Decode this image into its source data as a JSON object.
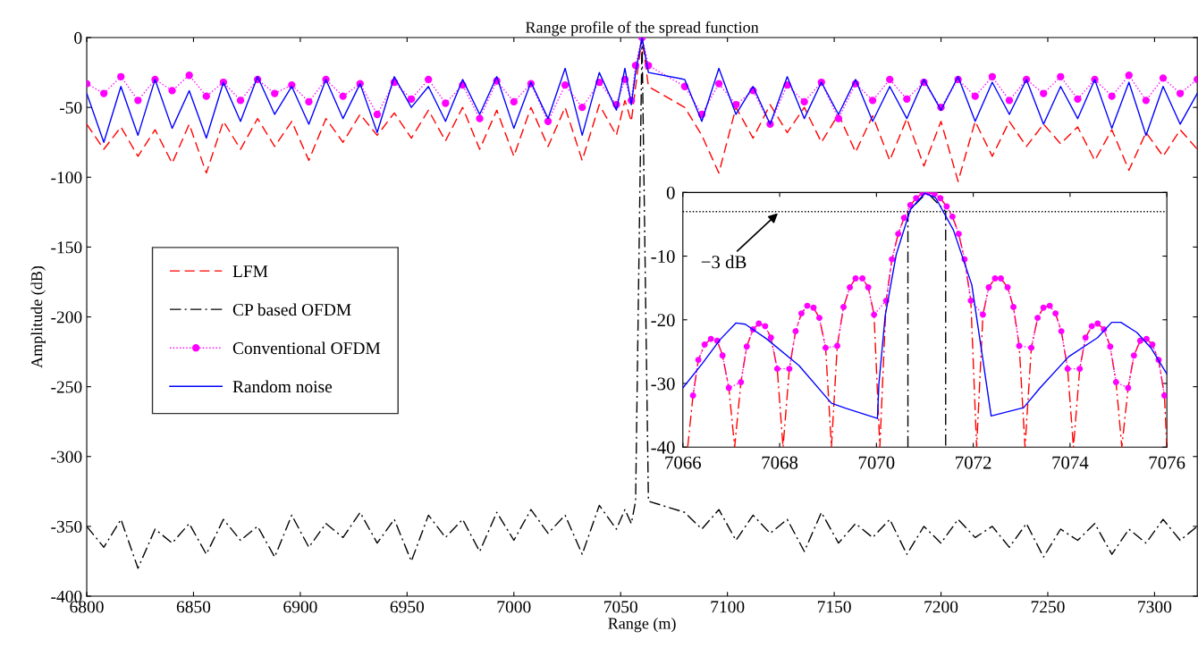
{
  "chart_data": [
    {
      "type": "line",
      "title": "Range profile of the spread function",
      "xlabel": "Range (m)",
      "ylabel": "Amplitude (dB)",
      "xlim": [
        6800,
        7320
      ],
      "xticks": [
        6800,
        6850,
        6900,
        6950,
        7000,
        7050,
        7100,
        7150,
        7200,
        7250,
        7300
      ],
      "ylim": [
        -400,
        0
      ],
      "yticks": [
        -400,
        -350,
        -300,
        -250,
        -200,
        -150,
        -100,
        -50,
        0
      ],
      "legend": "center left",
      "series": [
        {
          "name": "LFM",
          "color": "#ff0000",
          "line_style": "dashed",
          "marker": "none",
          "x": [
            6800,
            6808,
            6816,
            6824,
            6832,
            6840,
            6848,
            6856,
            6864,
            6872,
            6880,
            6888,
            6896,
            6904,
            6912,
            6920,
            6928,
            6936,
            6944,
            6952,
            6960,
            6968,
            6976,
            6984,
            6992,
            7000,
            7008,
            7016,
            7024,
            7032,
            7040,
            7048,
            7052,
            7055,
            7057,
            7060,
            7063,
            7080,
            7088,
            7096,
            7104,
            7112,
            7120,
            7128,
            7136,
            7144,
            7152,
            7160,
            7168,
            7176,
            7184,
            7192,
            7200,
            7208,
            7216,
            7224,
            7232,
            7240,
            7248,
            7256,
            7264,
            7272,
            7280,
            7288,
            7296,
            7304,
            7312,
            7320
          ],
          "values": [
            -62,
            -80,
            -64,
            -85,
            -66,
            -90,
            -62,
            -97,
            -60,
            -80,
            -58,
            -78,
            -60,
            -88,
            -58,
            -75,
            -55,
            -70,
            -54,
            -72,
            -52,
            -74,
            -50,
            -80,
            -52,
            -85,
            -50,
            -78,
            -50,
            -88,
            -48,
            -70,
            -45,
            -60,
            -35,
            0,
            -35,
            -50,
            -70,
            -97,
            -50,
            -72,
            -48,
            -68,
            -50,
            -75,
            -55,
            -82,
            -56,
            -88,
            -58,
            -92,
            -60,
            -103,
            -60,
            -85,
            -60,
            -78,
            -62,
            -76,
            -64,
            -88,
            -66,
            -95,
            -68,
            -85,
            -66,
            -80
          ]
        },
        {
          "name": "CP based OFDM",
          "color": "#000000",
          "line_style": "dashdot",
          "marker": "none",
          "x": [
            6800,
            6808,
            6816,
            6824,
            6832,
            6840,
            6848,
            6856,
            6864,
            6872,
            6880,
            6888,
            6896,
            6904,
            6912,
            6920,
            6928,
            6936,
            6944,
            6952,
            6960,
            6968,
            6976,
            6984,
            6992,
            7000,
            7008,
            7016,
            7024,
            7032,
            7040,
            7048,
            7052,
            7055,
            7057,
            7060,
            7063,
            7080,
            7088,
            7096,
            7104,
            7112,
            7120,
            7128,
            7136,
            7144,
            7152,
            7160,
            7168,
            7176,
            7184,
            7192,
            7200,
            7208,
            7216,
            7224,
            7232,
            7240,
            7248,
            7256,
            7264,
            7272,
            7280,
            7288,
            7296,
            7304,
            7312,
            7320
          ],
          "values": [
            -350,
            -365,
            -345,
            -380,
            -352,
            -362,
            -348,
            -370,
            -345,
            -360,
            -350,
            -372,
            -342,
            -365,
            -348,
            -358,
            -340,
            -362,
            -345,
            -375,
            -342,
            -358,
            -345,
            -368,
            -340,
            -360,
            -338,
            -355,
            -342,
            -370,
            -335,
            -352,
            -338,
            -348,
            -332,
            0,
            -332,
            -340,
            -352,
            -338,
            -360,
            -342,
            -355,
            -345,
            -368,
            -340,
            -362,
            -348,
            -358,
            -345,
            -370,
            -350,
            -362,
            -345,
            -358,
            -350,
            -365,
            -348,
            -372,
            -352,
            -360,
            -348,
            -370,
            -352,
            -362,
            -345,
            -360,
            -350
          ]
        },
        {
          "name": "Conventional OFDM",
          "color": "#ff00ff",
          "line_style": "dotted",
          "marker": "circle",
          "x": [
            6800,
            6808,
            6816,
            6824,
            6832,
            6840,
            6848,
            6856,
            6864,
            6872,
            6880,
            6888,
            6896,
            6904,
            6912,
            6920,
            6928,
            6936,
            6944,
            6952,
            6960,
            6968,
            6976,
            6984,
            6992,
            7000,
            7008,
            7016,
            7024,
            7032,
            7040,
            7048,
            7052,
            7055,
            7057,
            7060,
            7063,
            7080,
            7088,
            7096,
            7104,
            7112,
            7120,
            7128,
            7136,
            7144,
            7152,
            7160,
            7168,
            7176,
            7184,
            7192,
            7200,
            7208,
            7216,
            7224,
            7232,
            7240,
            7248,
            7256,
            7264,
            7272,
            7280,
            7288,
            7296,
            7304,
            7312,
            7320
          ],
          "values": [
            -33,
            -40,
            -28,
            -45,
            -30,
            -38,
            -27,
            -42,
            -32,
            -45,
            -30,
            -40,
            -34,
            -46,
            -30,
            -42,
            -33,
            -55,
            -32,
            -44,
            -30,
            -47,
            -34,
            -58,
            -31,
            -46,
            -33,
            -60,
            -34,
            -50,
            -32,
            -48,
            -30,
            -45,
            -20,
            0,
            -20,
            -35,
            -55,
            -33,
            -48,
            -38,
            -62,
            -34,
            -46,
            -32,
            -58,
            -33,
            -45,
            -30,
            -44,
            -32,
            -50,
            -30,
            -42,
            -28,
            -45,
            -30,
            -40,
            -28,
            -44,
            -30,
            -42,
            -27,
            -45,
            -29,
            -40,
            -30
          ]
        },
        {
          "name": "Random noise",
          "color": "#0000ff",
          "line_style": "solid",
          "marker": "none",
          "x": [
            6800,
            6808,
            6816,
            6824,
            6832,
            6840,
            6848,
            6856,
            6864,
            6872,
            6880,
            6888,
            6896,
            6904,
            6912,
            6920,
            6928,
            6936,
            6944,
            6952,
            6960,
            6968,
            6976,
            6984,
            6992,
            7000,
            7008,
            7016,
            7024,
            7032,
            7040,
            7048,
            7052,
            7055,
            7057,
            7060,
            7063,
            7080,
            7088,
            7096,
            7104,
            7112,
            7120,
            7128,
            7136,
            7144,
            7152,
            7160,
            7168,
            7176,
            7184,
            7192,
            7200,
            7208,
            7216,
            7224,
            7232,
            7240,
            7248,
            7256,
            7264,
            7272,
            7280,
            7288,
            7296,
            7304,
            7312,
            7320
          ],
          "values": [
            -40,
            -75,
            -35,
            -70,
            -30,
            -65,
            -38,
            -72,
            -32,
            -60,
            -28,
            -55,
            -35,
            -62,
            -30,
            -58,
            -33,
            -68,
            -28,
            -50,
            -35,
            -60,
            -30,
            -55,
            -28,
            -65,
            -32,
            -58,
            -22,
            -70,
            -25,
            -52,
            -22,
            -48,
            -25,
            0,
            -25,
            -30,
            -60,
            -22,
            -55,
            -35,
            -62,
            -28,
            -58,
            -32,
            -55,
            -30,
            -60,
            -35,
            -58,
            -30,
            -52,
            -28,
            -60,
            -32,
            -55,
            -30,
            -62,
            -35,
            -58,
            -30,
            -65,
            -32,
            -70,
            -35,
            -62,
            -40
          ]
        }
      ]
    },
    {
      "type": "line",
      "xlim": [
        7066,
        7076
      ],
      "xticks": [
        7066,
        7068,
        7070,
        7072,
        7074,
        7076
      ],
      "ylim": [
        -40,
        0
      ],
      "yticks": [
        -40,
        -30,
        -20,
        -10,
        0
      ],
      "ref_lines": [
        {
          "axis": "y",
          "value": -3,
          "color": "#000000",
          "line_style": "dotted"
        }
      ],
      "annotations": [
        {
          "text": "−3 dB",
          "x": 7068,
          "y": -3
        }
      ],
      "series": [
        {
          "color": "#ff0000",
          "line_style": "dashdot",
          "marker": "none",
          "x": [
            7066.1,
            7066.21,
            7066.32,
            7066.45,
            7066.58,
            7066.71,
            7066.82,
            7066.95,
            7067.07,
            7067.2,
            7067.32,
            7067.45,
            7067.57,
            7067.7,
            7067.82,
            7067.95,
            7068.07,
            7068.2,
            7068.33,
            7068.45,
            7068.57,
            7068.7,
            7068.82,
            7068.95,
            7069.07,
            7069.19,
            7069.32,
            7069.45,
            7069.57,
            7069.71,
            7069.83,
            7069.95,
            7070.07,
            7070.2,
            7070.32,
            7070.45,
            7070.57,
            7070.7,
            7070.82,
            7070.95,
            7071.07,
            7071.2,
            7071.32,
            7071.45,
            7071.57,
            7071.7,
            7071.82,
            7071.95,
            7072.07,
            7072.2,
            7072.32,
            7072.45,
            7072.57,
            7072.71,
            7072.83,
            7072.95,
            7073.07,
            7073.2,
            7073.33,
            7073.45,
            7073.58,
            7073.7,
            7073.82,
            7073.95,
            7074.07,
            7074.2,
            7074.32,
            7074.45,
            7074.57,
            7074.7,
            7074.83,
            7074.95,
            7075.07,
            7075.2,
            7075.32,
            7075.45,
            7075.58,
            7075.7,
            7075.83,
            7075.95,
            7076.0
          ],
          "values": [
            -40,
            -31.9,
            -26.3,
            -23.9,
            -23,
            -23.3,
            -25.6,
            -30.7,
            -40,
            -29.8,
            -24.2,
            -21.5,
            -20.6,
            -21,
            -22.8,
            -27.7,
            -40,
            -27.7,
            -21.8,
            -19,
            -17.8,
            -18.1,
            -19.7,
            -24.4,
            -40,
            -24.1,
            -18,
            -14.9,
            -13.5,
            -13.5,
            -14.9,
            -19.2,
            -40,
            -17,
            -10.5,
            -6.5,
            -4,
            -2,
            -0.9,
            -0.1,
            0,
            -0.2,
            -0.9,
            -2.2,
            -3.8,
            -6.5,
            -10.5,
            -17,
            -40,
            -19.2,
            -14.9,
            -13.5,
            -13.5,
            -14.9,
            -18,
            -24.1,
            -40,
            -24.4,
            -19.7,
            -18.1,
            -17.8,
            -19,
            -21.8,
            -27.7,
            -40,
            -27.7,
            -22.8,
            -21,
            -20.6,
            -21.5,
            -24.2,
            -29.8,
            -40,
            -30.7,
            -25.6,
            -23.3,
            -23,
            -23.9,
            -26.3,
            -31.9,
            -40
          ]
        },
        {
          "color": "#000000",
          "line_style": "dashdot",
          "marker": "none",
          "x": [
            7070.65,
            7070.65,
            7071.05,
            7071.43,
            7071.43
          ],
          "values": [
            -40,
            -3,
            0,
            -3,
            -40
          ]
        },
        {
          "color": "#ff00ff",
          "line_style": "dotted",
          "marker": "circle",
          "x": [
            7066.21,
            7066.32,
            7066.45,
            7066.58,
            7066.71,
            7066.82,
            7066.95,
            7067.2,
            7067.32,
            7067.45,
            7067.57,
            7067.7,
            7067.82,
            7067.95,
            7068.2,
            7068.33,
            7068.45,
            7068.57,
            7068.7,
            7068.82,
            7068.95,
            7069.19,
            7069.32,
            7069.45,
            7069.57,
            7069.71,
            7069.83,
            7069.95,
            7070.2,
            7070.32,
            7070.45,
            7070.57,
            7070.7,
            7070.82,
            7070.95,
            7071.07,
            7071.2,
            7071.32,
            7071.45,
            7071.57,
            7071.7,
            7071.82,
            7071.95,
            7072.2,
            7072.32,
            7072.45,
            7072.57,
            7072.71,
            7072.83,
            7072.95,
            7073.2,
            7073.33,
            7073.45,
            7073.58,
            7073.7,
            7073.82,
            7073.95,
            7074.2,
            7074.32,
            7074.45,
            7074.57,
            7074.7,
            7074.83,
            7074.95,
            7075.2,
            7075.32,
            7075.45,
            7075.58,
            7075.7,
            7075.83,
            7075.95
          ],
          "values": [
            -31.9,
            -26.3,
            -23.9,
            -23,
            -23.3,
            -25.6,
            -30.7,
            -29.8,
            -24.2,
            -21.5,
            -20.6,
            -21,
            -22.8,
            -27.7,
            -27.7,
            -21.8,
            -19,
            -17.8,
            -18.1,
            -19.7,
            -24.4,
            -24.1,
            -18,
            -14.9,
            -13.5,
            -13.5,
            -14.9,
            -19.2,
            -17,
            -10.5,
            -6.5,
            -4,
            -2,
            -0.9,
            -0.1,
            0,
            -0.2,
            -0.9,
            -2.2,
            -3.8,
            -6.5,
            -10.5,
            -17,
            -19.2,
            -14.9,
            -13.5,
            -13.5,
            -14.9,
            -18,
            -24.1,
            -24.4,
            -19.7,
            -18.1,
            -17.8,
            -19,
            -21.8,
            -27.7,
            -27.7,
            -22.8,
            -21,
            -20.6,
            -21.5,
            -24.2,
            -29.8,
            -30.7,
            -25.6,
            -23.3,
            -23,
            -23.9,
            -26.3,
            -31.9
          ]
        },
        {
          "color": "#0000ff",
          "line_style": "solid",
          "marker": "none",
          "x": [
            7066,
            7066.4,
            7066.77,
            7067.1,
            7067.29,
            7067.73,
            7068.4,
            7069.07,
            7069.37,
            7070.02,
            7070.05,
            7070.18,
            7070.41,
            7070.7,
            7071.0,
            7071.22,
            7071.59,
            7071.97,
            7072.19,
            7072.37,
            7073.04,
            7073.38,
            7073.97,
            7074.57,
            7074.86,
            7075.05,
            7075.38,
            7075.68,
            7076
          ],
          "values": [
            -30.7,
            -26.9,
            -23.1,
            -20.5,
            -20.7,
            -23,
            -27.2,
            -33.1,
            -33.9,
            -35.5,
            -30.1,
            -19.4,
            -9.7,
            -2.7,
            -0.1,
            -0.8,
            -5.9,
            -14.5,
            -25.8,
            -35.1,
            -33.8,
            -30.7,
            -25.8,
            -22.8,
            -20.4,
            -20.4,
            -22,
            -24.5,
            -28.5
          ]
        }
      ]
    }
  ]
}
